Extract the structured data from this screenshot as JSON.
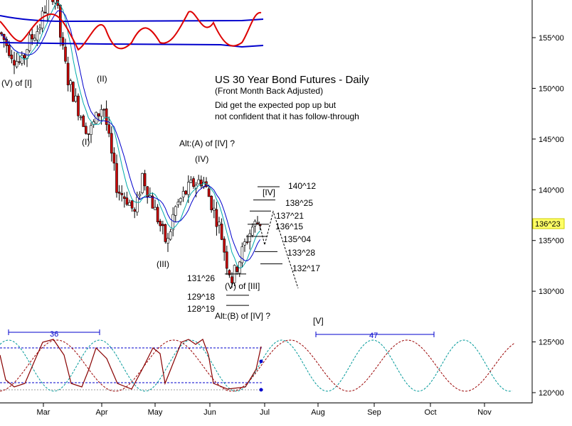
{
  "chart_data": {
    "type": "candlestick",
    "title": "US 30 Year Bond Futures - Daily",
    "subtitle": "(Front Month Back Adjusted)",
    "comment": [
      "Did get the expected pop up but",
      "not confident that it has follow-through"
    ],
    "x_labels": [
      "Mar",
      "Apr",
      "May",
      "Jun",
      "Jul",
      "Aug",
      "Sep",
      "Oct",
      "Nov"
    ],
    "y_labels": [
      "155^00",
      "150^00",
      "145^00",
      "140^00",
      "135^00",
      "130^00",
      "125^00",
      "120^00"
    ],
    "ylim": [
      118.5,
      160
    ],
    "price_marker": "136^23",
    "wave_labels": [
      "(V) of [I]",
      "(I)",
      "(II)",
      "(III)",
      "(IV)",
      "Alt:(A) of [IV] ?",
      "(V) of [III]",
      "Alt:(B) of [IV] ?",
      "[IV]",
      "[V]"
    ],
    "levels": [
      "140^12",
      "138^25",
      "137^21",
      "136^15",
      "135^04",
      "133^28",
      "132^17",
      "131^26",
      "129^18",
      "128^19"
    ],
    "cycle_labels": [
      "36",
      "47"
    ],
    "colors": {
      "up": "#ffffff",
      "down": "#cc0000",
      "ma1": "#0000cc",
      "ma2": "#00aaaa",
      "band": "#0000cc",
      "osc": "#dd0000",
      "marker_bg": "#ffff66"
    }
  }
}
